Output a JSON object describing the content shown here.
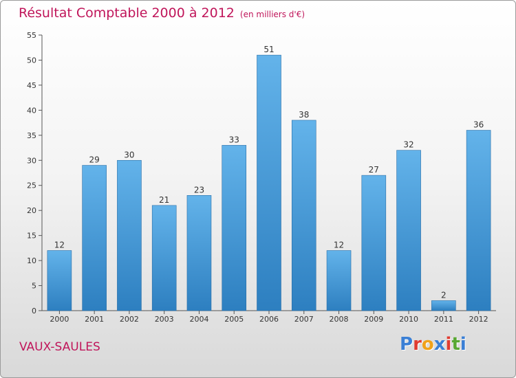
{
  "title": "Résultat Comptable 2000 à 2012",
  "subtitle": "(en milliers d'€)",
  "commune": "VAUX-SAULES",
  "logo": {
    "letters": [
      "P",
      "r",
      "o",
      "x",
      "i",
      "t",
      "i"
    ],
    "colors": [
      "#3a7fd5",
      "#e03c31",
      "#f0a21b",
      "#3a7fd5",
      "#e03c31",
      "#58a832",
      "#3a7fd5"
    ]
  },
  "colors": {
    "accent": "#c0155a",
    "bar_top": "#63b3ea",
    "bar_bottom": "#2d7fc0"
  },
  "chart_data": {
    "type": "bar",
    "title": "Résultat Comptable 2000 à 2012",
    "subtitle": "(en milliers d'€)",
    "categories": [
      "2000",
      "2001",
      "2002",
      "2003",
      "2004",
      "2005",
      "2006",
      "2007",
      "2008",
      "2009",
      "2010",
      "2011",
      "2012"
    ],
    "values": [
      12,
      29,
      30,
      21,
      23,
      33,
      51,
      38,
      12,
      27,
      32,
      2,
      36
    ],
    "yticks": [
      "0",
      "5",
      "10",
      "15",
      "20",
      "25",
      "30",
      "35",
      "40",
      "45",
      "50",
      "55"
    ],
    "ylim": [
      0,
      55
    ],
    "grid": false,
    "data_labels": true
  }
}
